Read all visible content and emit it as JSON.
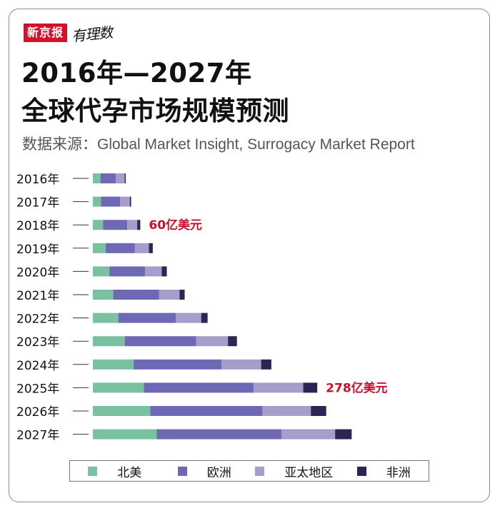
{
  "brand": {
    "logo_text": "新京报",
    "sub_text": "有理数"
  },
  "header": {
    "title_line1": "2016年—2027年",
    "title_line2": "全球代孕市场规模预测",
    "source": "数据来源：Global Market Insight, Surrogacy Market Report"
  },
  "colors": {
    "north_america": "#79c1a1",
    "europe": "#6e68b5",
    "asia_pacific": "#a69dca",
    "africa": "#2a2653",
    "annotation": "#c8102e"
  },
  "chart_data": {
    "type": "bar",
    "orientation": "horizontal",
    "stacked": true,
    "title": "2016年—2027年 全球代孕市场规模预测",
    "xlabel": "",
    "ylabel": "",
    "unit": "亿美元",
    "categories": [
      "2016年",
      "2017年",
      "2018年",
      "2019年",
      "2020年",
      "2021年",
      "2022年",
      "2023年",
      "2024年",
      "2025年",
      "2026年",
      "2027年"
    ],
    "series": [
      {
        "name": "北美",
        "key": "north_america",
        "values": [
          3,
          3.2,
          4,
          5,
          6.5,
          8,
          10,
          12.5,
          16,
          20,
          22.5,
          25
        ]
      },
      {
        "name": "欧洲",
        "key": "europe",
        "values": [
          6,
          7.5,
          9.5,
          11.5,
          14,
          18,
          22.5,
          28,
          34.5,
          43,
          44,
          49
        ]
      },
      {
        "name": "亚太地区",
        "key": "asia_pacific",
        "values": [
          3.5,
          3.8,
          3.9,
          5.5,
          6.5,
          8,
          10,
          12.5,
          15.5,
          19.5,
          19,
          21
        ]
      },
      {
        "name": "非洲",
        "key": "africa",
        "values": [
          0.4,
          0.5,
          1.2,
          1.5,
          2,
          2,
          2.5,
          3.5,
          4,
          5.5,
          6,
          6.5
        ]
      }
    ],
    "annotations": [
      {
        "category": "2018年",
        "text": "60亿美元"
      },
      {
        "category": "2025年",
        "text": "278亿美元"
      }
    ],
    "legend_position": "bottom"
  }
}
